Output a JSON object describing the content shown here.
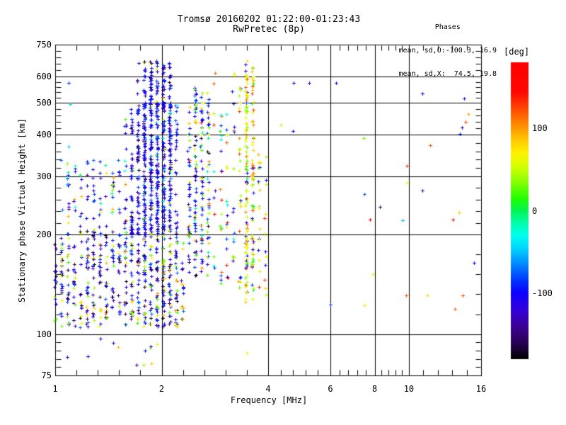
{
  "title": "Tromsø 20160202 01:22:00-01:23:43",
  "subtitle": "RwPretec (8p)",
  "stats": {
    "heading": "Phases",
    "line_o": "mean, sd,O:-100.3, 16.9",
    "line_x": "mean, sd,X:  74.5, 19.8"
  },
  "chart_data": {
    "type": "scatter",
    "title": "Tromsø 20160202 01:22:00-01:23:43",
    "subtitle": "RwPretec (8p)",
    "xlabel": "Frequency [MHz]",
    "ylabel": "Stationary phase Virtual Height [km]",
    "x_scale": "log",
    "y_scale": "log",
    "xlim": [
      1,
      16
    ],
    "ylim": [
      75,
      750
    ],
    "grid": true,
    "marker": "plus",
    "x_ticks": [
      {
        "value": 1,
        "label": "1"
      },
      {
        "value": 2,
        "label": "2"
      },
      {
        "value": 4,
        "label": "4"
      },
      {
        "value": 6,
        "label": "6"
      },
      {
        "value": 8,
        "label": "8"
      },
      {
        "value": 10,
        "label": "10"
      },
      {
        "value": 16,
        "label": "16"
      }
    ],
    "x_gridlines": [
      2,
      4,
      6,
      8,
      10
    ],
    "y_ticks": [
      {
        "value": 750,
        "label": "750"
      },
      {
        "value": 600,
        "label": "600"
      },
      {
        "value": 500,
        "label": "500"
      },
      {
        "value": 400,
        "label": "400"
      },
      {
        "value": 300,
        "label": "300"
      },
      {
        "value": 200,
        "label": "200"
      },
      {
        "value": 100,
        "label": "100"
      },
      {
        "value": 75,
        "label": "75"
      }
    ],
    "y_gridlines": [
      100,
      200,
      300,
      400,
      500,
      600
    ],
    "colorbar": {
      "label": "[deg]",
      "min": -180,
      "max": 180,
      "position": "right",
      "ticks": [
        {
          "value": 100,
          "label": "100"
        },
        {
          "value": 0,
          "label": "0"
        },
        {
          "value": -100,
          "label": "-100"
        }
      ]
    },
    "point_clusters": [
      {
        "name": "e-region-left",
        "f": [
          1.0,
          1.55
        ],
        "h": [
          105,
          205
        ],
        "n": 250,
        "phases": [
          [
            -150,
            -70,
            60
          ],
          [
            -178,
            -150,
            10
          ],
          [
            15,
            110,
            30
          ]
        ]
      },
      {
        "name": "e-region-mid",
        "f": [
          1.55,
          2.3
        ],
        "h": [
          105,
          210
        ],
        "n": 330,
        "phases": [
          [
            -150,
            -70,
            58
          ],
          [
            -180,
            -150,
            12
          ],
          [
            10,
            110,
            30
          ]
        ]
      },
      {
        "name": "f-left-sparse",
        "f": [
          1.05,
          1.62
        ],
        "h": [
          200,
          340
        ],
        "n": 90,
        "phases": [
          [
            -140,
            -70,
            68
          ],
          [
            25,
            100,
            20
          ],
          [
            -45,
            10,
            12
          ]
        ]
      },
      {
        "name": "f-column-lower",
        "f": [
          1.6,
          1.8
        ],
        "h": [
          200,
          480
        ],
        "n": 140,
        "phases": [
          [
            -135,
            -75,
            80
          ],
          [
            -175,
            -135,
            12
          ],
          [
            20,
            90,
            8
          ]
        ]
      },
      {
        "name": "f-column-core",
        "f": [
          1.78,
          2.18
        ],
        "h": [
          200,
          500
        ],
        "n": 400,
        "phases": [
          [
            -130,
            -75,
            78
          ],
          [
            -175,
            -135,
            14
          ],
          [
            -60,
            -20,
            4
          ],
          [
            10,
            90,
            4
          ]
        ]
      },
      {
        "name": "f-column-top",
        "f": [
          1.72,
          2.12
        ],
        "h": [
          480,
          670
        ],
        "n": 120,
        "phases": [
          [
            -130,
            -80,
            84
          ],
          [
            -170,
            -135,
            10
          ],
          [
            40,
            90,
            6
          ]
        ]
      },
      {
        "name": "stripe-2p5",
        "f": [
          2.35,
          2.75
        ],
        "h": [
          150,
          430
        ],
        "n": 150,
        "phases": [
          [
            -130,
            -70,
            48
          ],
          [
            -30,
            30,
            16
          ],
          [
            30,
            115,
            26
          ],
          [
            -180,
            -140,
            10
          ]
        ]
      },
      {
        "name": "stripe-2p5-top",
        "f": [
          2.4,
          2.72
        ],
        "h": [
          430,
          560
        ],
        "n": 45,
        "phases": [
          [
            -125,
            -70,
            55
          ],
          [
            30,
            105,
            28
          ],
          [
            105,
            165,
            17
          ]
        ]
      },
      {
        "name": "band-3p0",
        "f": [
          2.82,
          3.3
        ],
        "h": [
          140,
          630
        ],
        "n": 70,
        "phases": [
          [
            -130,
            -70,
            42
          ],
          [
            20,
            110,
            36
          ],
          [
            110,
            170,
            10
          ],
          [
            -40,
            20,
            12
          ]
        ]
      },
      {
        "name": "stripe-3p5",
        "f": [
          3.38,
          3.64
        ],
        "h": [
          125,
          670
        ],
        "n": 195,
        "phases": [
          [
            30,
            90,
            52
          ],
          [
            85,
            135,
            24
          ],
          [
            -10,
            30,
            12
          ],
          [
            -125,
            -80,
            12
          ]
        ]
      },
      {
        "name": "band-3p8",
        "f": [
          3.62,
          4.0
        ],
        "h": [
          130,
          360
        ],
        "n": 35,
        "phases": [
          [
            30,
            100,
            58
          ],
          [
            -120,
            -70,
            30
          ],
          [
            100,
            150,
            12
          ]
        ]
      },
      {
        "name": "below-100km",
        "f": [
          1.05,
          1.95
        ],
        "h": [
          78,
          100
        ],
        "n": 12,
        "phases": [
          [
            -150,
            -80,
            70
          ],
          [
            30,
            90,
            30
          ]
        ]
      }
    ],
    "outlier_points": [
      [
        4.72,
        574,
        -100
      ],
      [
        5.22,
        576,
        -135
      ],
      [
        6.22,
        576,
        -105
      ],
      [
        10.9,
        534,
        -100
      ],
      [
        14.3,
        515,
        -95
      ],
      [
        4.35,
        430,
        45
      ],
      [
        4.7,
        411,
        -100
      ],
      [
        14.7,
        462,
        95
      ],
      [
        14.45,
        439,
        125
      ],
      [
        14.1,
        421,
        -140
      ],
      [
        13.95,
        403,
        -90
      ],
      [
        7.45,
        392,
        30
      ],
      [
        11.5,
        373,
        120
      ],
      [
        9.85,
        323,
        130
      ],
      [
        9.85,
        287,
        70
      ],
      [
        10.9,
        272,
        -140
      ],
      [
        7.5,
        265,
        -75
      ],
      [
        8.3,
        243,
        -155
      ],
      [
        7.75,
        222,
        170
      ],
      [
        9.6,
        221,
        -55
      ],
      [
        13.3,
        222,
        175
      ],
      [
        13.85,
        233,
        85
      ],
      [
        15.3,
        164,
        -100
      ],
      [
        7.9,
        152,
        60
      ],
      [
        9.8,
        131,
        120
      ],
      [
        11.25,
        131,
        80
      ],
      [
        14.2,
        131,
        125
      ],
      [
        6.0,
        123,
        -85
      ],
      [
        7.5,
        122,
        75
      ],
      [
        13.5,
        119,
        115
      ],
      [
        1.09,
        574,
        -90
      ],
      [
        1.1,
        495,
        -45
      ],
      [
        1.09,
        369,
        -50
      ],
      [
        1.08,
        284,
        -55
      ],
      [
        3.48,
        88,
        65
      ]
    ]
  }
}
